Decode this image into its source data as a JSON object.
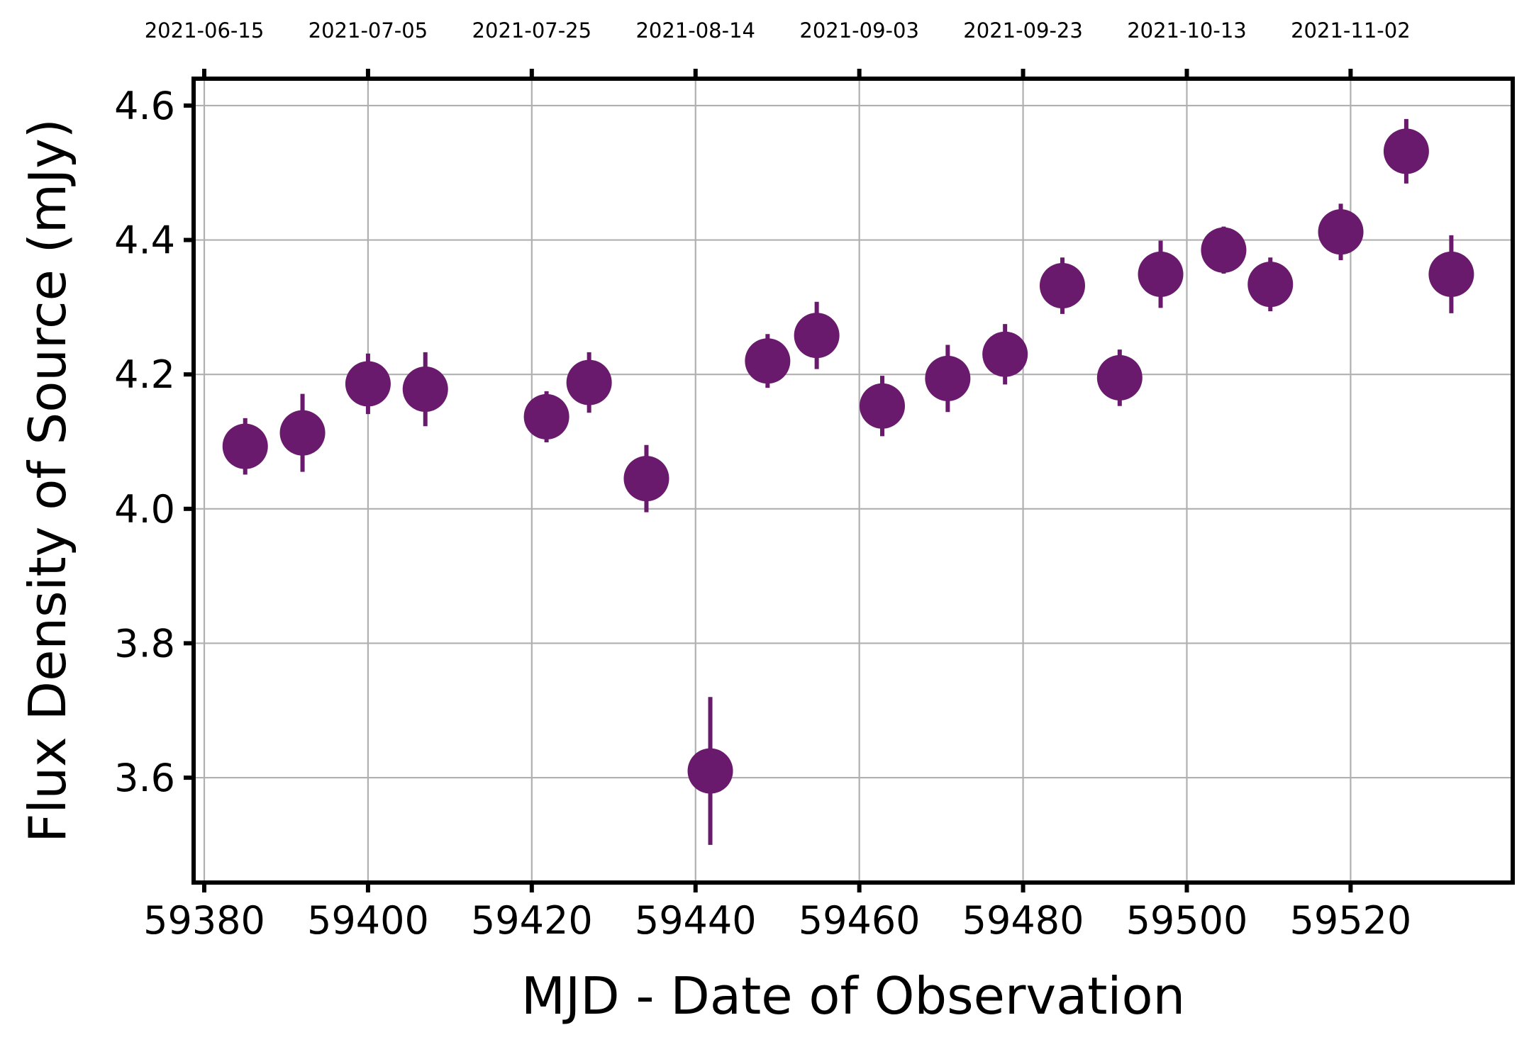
{
  "chart_data": {
    "type": "scatter",
    "title": "",
    "xlabel": "MJD - Date of Observation",
    "ylabel": "Flux Density of Source (mJy)",
    "xlim": [
      59378.7,
      59539.8
    ],
    "ylim": [
      3.444,
      4.64
    ],
    "grid": true,
    "marker_color": "#6a1a6c",
    "x_ticks": [
      59380,
      59400,
      59420,
      59440,
      59460,
      59480,
      59500,
      59520
    ],
    "x_tick_labels": [
      "59380",
      "59400",
      "59420",
      "59440",
      "59460",
      "59480",
      "59500",
      "59520"
    ],
    "y_ticks": [
      3.6,
      3.8,
      4.0,
      4.2,
      4.4,
      4.6
    ],
    "y_tick_labels": [
      "3.6",
      "3.8",
      "4.0",
      "4.2",
      "4.4",
      "4.6"
    ],
    "top_axis": {
      "ticks": [
        59380,
        59400,
        59420,
        59440,
        59460,
        59480,
        59500,
        59520
      ],
      "labels": [
        "2021-06-15",
        "2021-07-05",
        "2021-07-25",
        "2021-08-14",
        "2021-09-03",
        "2021-09-23",
        "2021-10-13",
        "2021-11-02"
      ]
    },
    "series": [
      {
        "points": [
          {
            "x": 59385.0,
            "y": 4.093,
            "yerr": 0.042
          },
          {
            "x": 59392.0,
            "y": 4.113,
            "yerr": 0.058
          },
          {
            "x": 59400.0,
            "y": 4.186,
            "yerr": 0.045
          },
          {
            "x": 59407.0,
            "y": 4.178,
            "yerr": 0.055
          },
          {
            "x": 59421.8,
            "y": 4.137,
            "yerr": 0.038
          },
          {
            "x": 59427.0,
            "y": 4.188,
            "yerr": 0.045
          },
          {
            "x": 59434.0,
            "y": 4.045,
            "yerr": 0.05
          },
          {
            "x": 59441.8,
            "y": 3.61,
            "yerr": 0.11
          },
          {
            "x": 59448.8,
            "y": 4.22,
            "yerr": 0.04
          },
          {
            "x": 59454.8,
            "y": 4.258,
            "yerr": 0.05
          },
          {
            "x": 59462.8,
            "y": 4.153,
            "yerr": 0.045
          },
          {
            "x": 59470.8,
            "y": 4.194,
            "yerr": 0.05
          },
          {
            "x": 59477.8,
            "y": 4.23,
            "yerr": 0.045
          },
          {
            "x": 59484.8,
            "y": 4.332,
            "yerr": 0.042
          },
          {
            "x": 59491.8,
            "y": 4.195,
            "yerr": 0.042
          },
          {
            "x": 59496.8,
            "y": 4.349,
            "yerr": 0.05
          },
          {
            "x": 59504.5,
            "y": 4.385,
            "yerr": 0.035
          },
          {
            "x": 59510.2,
            "y": 4.334,
            "yerr": 0.04
          },
          {
            "x": 59518.8,
            "y": 4.412,
            "yerr": 0.042
          },
          {
            "x": 59526.8,
            "y": 4.532,
            "yerr": 0.048
          },
          {
            "x": 59532.3,
            "y": 4.349,
            "yerr": 0.058
          }
        ]
      }
    ]
  }
}
